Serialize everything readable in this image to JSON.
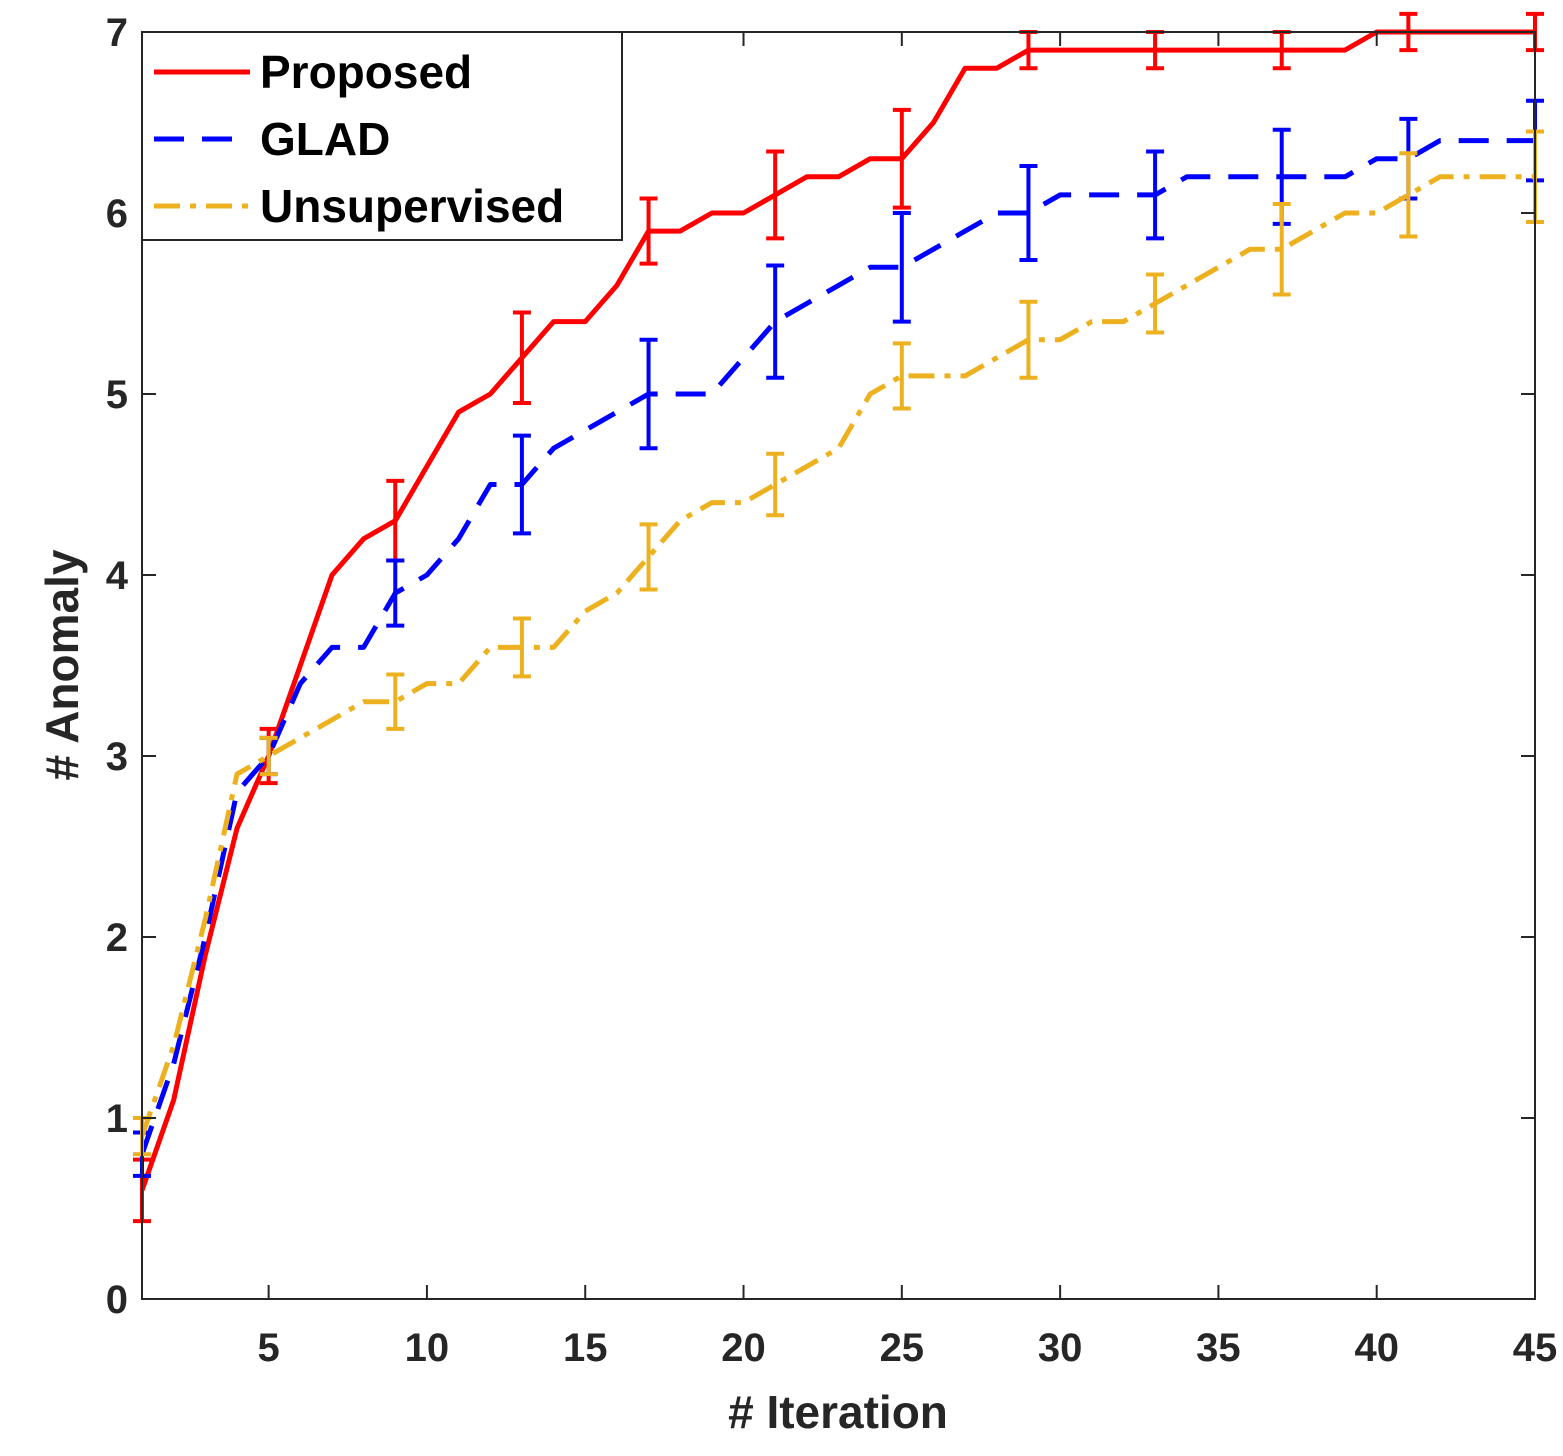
{
  "chart_data": {
    "type": "line",
    "title": "",
    "xlabel": "# Iteration",
    "ylabel": "# Anomaly",
    "xlim": [
      1,
      45
    ],
    "ylim": [
      0,
      7
    ],
    "xticks": [
      5,
      10,
      15,
      20,
      25,
      30,
      35,
      40,
      45
    ],
    "yticks": [
      0,
      1,
      2,
      3,
      4,
      5,
      6,
      7
    ],
    "grid": false,
    "legend": "top-left",
    "series": [
      {
        "name": "Proposed",
        "color": "#ff0000",
        "dash": "solid",
        "points": [
          [
            1,
            0.6
          ],
          [
            2,
            1.1
          ],
          [
            3,
            1.9
          ],
          [
            4,
            2.6
          ],
          [
            5,
            3.0
          ],
          [
            6,
            3.5
          ],
          [
            7,
            4.0
          ],
          [
            8,
            4.2
          ],
          [
            9,
            4.3
          ],
          [
            10,
            4.6
          ],
          [
            11,
            4.9
          ],
          [
            12,
            5.0
          ],
          [
            13,
            5.2
          ],
          [
            14,
            5.4
          ],
          [
            15,
            5.4
          ],
          [
            16,
            5.6
          ],
          [
            17,
            5.9
          ],
          [
            18,
            5.9
          ],
          [
            19,
            6.0
          ],
          [
            20,
            6.0
          ],
          [
            21,
            6.1
          ],
          [
            22,
            6.2
          ],
          [
            23,
            6.2
          ],
          [
            24,
            6.3
          ],
          [
            25,
            6.3
          ],
          [
            26,
            6.5
          ],
          [
            27,
            6.8
          ],
          [
            28,
            6.8
          ],
          [
            29,
            6.9
          ],
          [
            30,
            6.9
          ],
          [
            31,
            6.9
          ],
          [
            32,
            6.9
          ],
          [
            33,
            6.9
          ],
          [
            34,
            6.9
          ],
          [
            35,
            6.9
          ],
          [
            36,
            6.9
          ],
          [
            37,
            6.9
          ],
          [
            38,
            6.9
          ],
          [
            39,
            6.9
          ],
          [
            40,
            7.0
          ],
          [
            41,
            7.0
          ],
          [
            42,
            7.0
          ],
          [
            43,
            7.0
          ],
          [
            44,
            7.0
          ],
          [
            45,
            7.0
          ]
        ],
        "errorbars": [
          [
            1,
            0.6,
            0.17
          ],
          [
            5,
            3.0,
            0.15
          ],
          [
            9,
            4.3,
            0.22
          ],
          [
            13,
            5.2,
            0.25
          ],
          [
            17,
            5.9,
            0.18
          ],
          [
            21,
            6.1,
            0.24
          ],
          [
            25,
            6.3,
            0.27
          ],
          [
            29,
            6.9,
            0.1
          ],
          [
            33,
            6.9,
            0.1
          ],
          [
            37,
            6.9,
            0.1
          ],
          [
            41,
            7.0,
            0.1
          ],
          [
            45,
            7.0,
            0.1
          ]
        ]
      },
      {
        "name": "GLAD",
        "color": "#0000ff",
        "dash": "dashed",
        "points": [
          [
            1,
            0.8
          ],
          [
            2,
            1.3
          ],
          [
            3,
            2.0
          ],
          [
            4,
            2.8
          ],
          [
            5,
            3.0
          ],
          [
            6,
            3.4
          ],
          [
            7,
            3.6
          ],
          [
            8,
            3.6
          ],
          [
            9,
            3.9
          ],
          [
            10,
            4.0
          ],
          [
            11,
            4.2
          ],
          [
            12,
            4.5
          ],
          [
            13,
            4.5
          ],
          [
            14,
            4.7
          ],
          [
            15,
            4.8
          ],
          [
            16,
            4.9
          ],
          [
            17,
            5.0
          ],
          [
            18,
            5.0
          ],
          [
            19,
            5.0
          ],
          [
            20,
            5.2
          ],
          [
            21,
            5.4
          ],
          [
            22,
            5.5
          ],
          [
            23,
            5.6
          ],
          [
            24,
            5.7
          ],
          [
            25,
            5.7
          ],
          [
            26,
            5.8
          ],
          [
            27,
            5.9
          ],
          [
            28,
            6.0
          ],
          [
            29,
            6.0
          ],
          [
            30,
            6.1
          ],
          [
            31,
            6.1
          ],
          [
            32,
            6.1
          ],
          [
            33,
            6.1
          ],
          [
            34,
            6.2
          ],
          [
            35,
            6.2
          ],
          [
            36,
            6.2
          ],
          [
            37,
            6.2
          ],
          [
            38,
            6.2
          ],
          [
            39,
            6.2
          ],
          [
            40,
            6.3
          ],
          [
            41,
            6.3
          ],
          [
            42,
            6.4
          ],
          [
            43,
            6.4
          ],
          [
            44,
            6.4
          ],
          [
            45,
            6.4
          ]
        ],
        "errorbars": [
          [
            1,
            0.8,
            0.12
          ],
          [
            5,
            3.0,
            0.1
          ],
          [
            9,
            3.9,
            0.18
          ],
          [
            13,
            4.5,
            0.27
          ],
          [
            17,
            5.0,
            0.3
          ],
          [
            21,
            5.4,
            0.31
          ],
          [
            25,
            5.7,
            0.3
          ],
          [
            29,
            6.0,
            0.26
          ],
          [
            33,
            6.1,
            0.24
          ],
          [
            37,
            6.2,
            0.26
          ],
          [
            41,
            6.3,
            0.22
          ],
          [
            45,
            6.4,
            0.22
          ]
        ]
      },
      {
        "name": "Unsupervised",
        "color": "#edb120",
        "dash": "dashdot",
        "points": [
          [
            1,
            0.9
          ],
          [
            2,
            1.4
          ],
          [
            3,
            2.1
          ],
          [
            4,
            2.9
          ],
          [
            5,
            3.0
          ],
          [
            6,
            3.1
          ],
          [
            7,
            3.2
          ],
          [
            8,
            3.3
          ],
          [
            9,
            3.3
          ],
          [
            10,
            3.4
          ],
          [
            11,
            3.4
          ],
          [
            12,
            3.6
          ],
          [
            13,
            3.6
          ],
          [
            14,
            3.6
          ],
          [
            15,
            3.8
          ],
          [
            16,
            3.9
          ],
          [
            17,
            4.1
          ],
          [
            18,
            4.3
          ],
          [
            19,
            4.4
          ],
          [
            20,
            4.4
          ],
          [
            21,
            4.5
          ],
          [
            22,
            4.6
          ],
          [
            23,
            4.7
          ],
          [
            24,
            5.0
          ],
          [
            25,
            5.1
          ],
          [
            26,
            5.1
          ],
          [
            27,
            5.1
          ],
          [
            28,
            5.2
          ],
          [
            29,
            5.3
          ],
          [
            30,
            5.3
          ],
          [
            31,
            5.4
          ],
          [
            32,
            5.4
          ],
          [
            33,
            5.5
          ],
          [
            34,
            5.6
          ],
          [
            35,
            5.7
          ],
          [
            36,
            5.8
          ],
          [
            37,
            5.8
          ],
          [
            38,
            5.9
          ],
          [
            39,
            6.0
          ],
          [
            40,
            6.0
          ],
          [
            41,
            6.1
          ],
          [
            42,
            6.2
          ],
          [
            43,
            6.2
          ],
          [
            44,
            6.2
          ],
          [
            45,
            6.2
          ]
        ],
        "errorbars": [
          [
            1,
            0.9,
            0.1
          ],
          [
            5,
            3.0,
            0.1
          ],
          [
            9,
            3.3,
            0.15
          ],
          [
            13,
            3.6,
            0.16
          ],
          [
            17,
            4.1,
            0.18
          ],
          [
            21,
            4.5,
            0.17
          ],
          [
            25,
            5.1,
            0.18
          ],
          [
            29,
            5.3,
            0.21
          ],
          [
            33,
            5.5,
            0.16
          ],
          [
            37,
            5.8,
            0.25
          ],
          [
            41,
            6.1,
            0.23
          ],
          [
            45,
            6.2,
            0.25
          ]
        ]
      }
    ]
  }
}
